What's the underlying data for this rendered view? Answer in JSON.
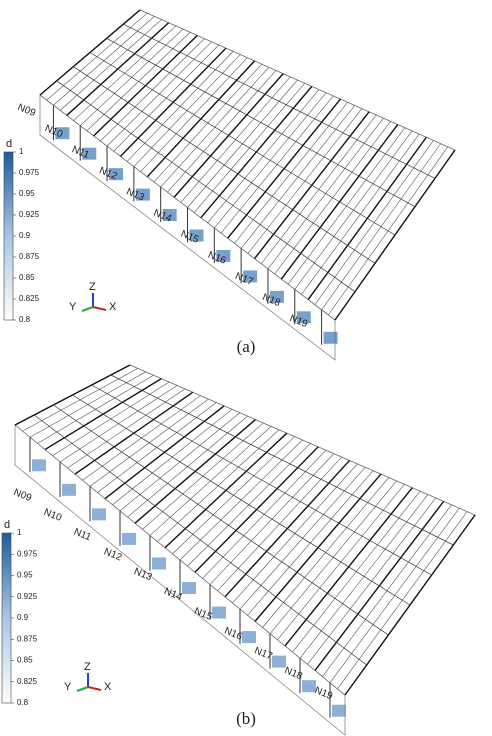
{
  "panels": [
    {
      "caption": "(a)",
      "labels": [
        "N09",
        "N10",
        "N11",
        "N12",
        "N13",
        "N14",
        "N15",
        "N16",
        "N17",
        "N18",
        "N19"
      ],
      "colorbar": {
        "title": "d",
        "lim": [
          0.8,
          1
        ],
        "ticks": [
          1,
          0.975,
          0.95,
          0.925,
          0.9,
          0.875,
          0.85,
          0.825,
          0.8
        ]
      },
      "axes": {
        "z": "Z",
        "y": "Y",
        "x": "X"
      }
    },
    {
      "caption": "(b)",
      "labels": [
        "N09",
        "N10",
        "N11",
        "N12",
        "N13",
        "N14",
        "N15",
        "N16",
        "N17",
        "N18",
        "N19"
      ],
      "colorbar": {
        "title": "d",
        "lim": [
          0.8,
          1
        ],
        "ticks": [
          1,
          0.975,
          0.95,
          0.925,
          0.9,
          0.875,
          0.85,
          0.825,
          0.8
        ]
      },
      "axes": {
        "z": "Z",
        "y": "Y",
        "x": "X"
      }
    }
  ]
}
